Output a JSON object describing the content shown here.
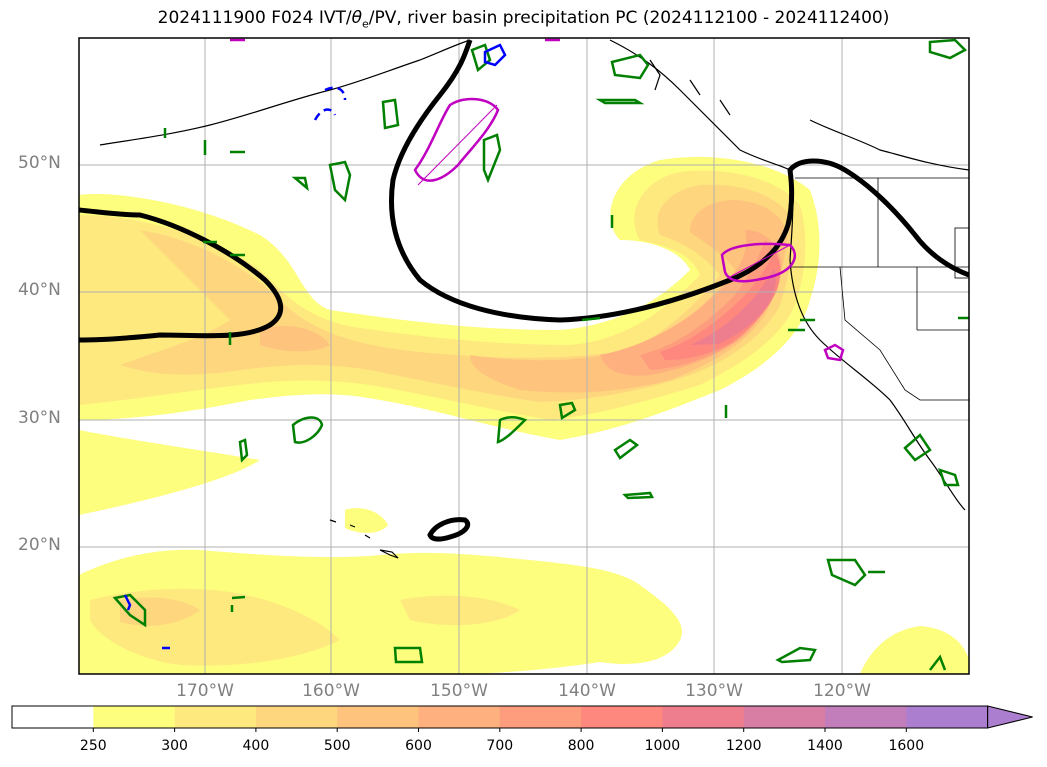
{
  "title_parts": {
    "prefix": "2024111900 F024 IVT/",
    "theta": "θ",
    "theta_sub": "e",
    "suffix": "/PV, river basin precipitation PC (2024112100 - 2024112400)"
  },
  "lat_labels": [
    "50°N",
    "40°N",
    "30°N",
    "20°N"
  ],
  "lon_labels": [
    "170°W",
    "160°W",
    "150°W",
    "140°W",
    "130°W",
    "120°W"
  ],
  "colorbar": {
    "labels": [
      "250",
      "300",
      "400",
      "500",
      "600",
      "700",
      "800",
      "1000",
      "1200",
      "1400",
      "1600"
    ],
    "colors": [
      "#ffffff",
      "#fefe7e",
      "#fee97e",
      "#fed67e",
      "#fec47e",
      "#feb07e",
      "#fe9c7e",
      "#fe887e",
      "#ee7e8e",
      "#d87ea4",
      "#c27eba",
      "#ac7ed0"
    ]
  },
  "contour_colors": {
    "theta_e": "#000000",
    "pv_positive": "#008000",
    "pv_negative": "#0000ff",
    "precip": "#c000c0",
    "coast": "#000000"
  }
}
